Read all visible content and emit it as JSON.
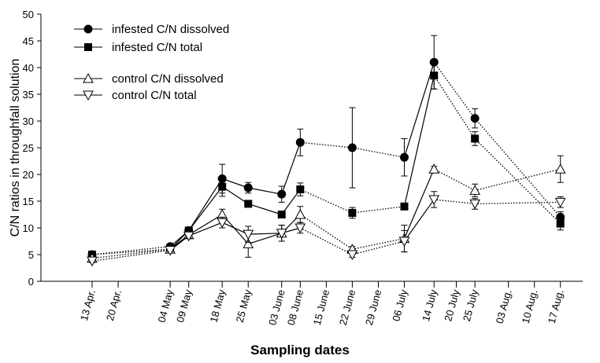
{
  "chart_data": {
    "type": "line",
    "x_label": "Sampling dates",
    "y_label": "C/N ratios in throughfall solution",
    "x": [
      "13 Apr.",
      "04 May",
      "09 May",
      "18 May",
      "25 May",
      "03 June",
      "08 June",
      "22 June",
      "06 July",
      "14 July",
      "25 July",
      "17 Aug."
    ],
    "xticks": [
      "13 Apr.",
      "20 Apr.",
      "04 May",
      "09 May",
      "18 May",
      "25 May",
      "03 June",
      "08 June",
      "15 June",
      "22 June",
      "29 June",
      "06 July",
      "14 July",
      "20 July",
      "25 July",
      "03 Aug.",
      "10 Aug.",
      "17 Aug."
    ],
    "ylim": [
      0,
      50
    ],
    "yticks": [
      0,
      5,
      10,
      15,
      20,
      25,
      30,
      35,
      40,
      45,
      50
    ],
    "segment_styles": [
      "dotted",
      "solid",
      "solid",
      "solid",
      "solid",
      "solid",
      "dotted",
      "dotted",
      "solid",
      "dotted",
      "dotted"
    ],
    "grid": false,
    "legend_position": "upper left",
    "series": [
      {
        "name": "infested C/N dissolved",
        "color": "#000000",
        "marker": "circle",
        "values": [
          5,
          6.5,
          9.5,
          19.2,
          17.5,
          16.3,
          26,
          25,
          23.2,
          41,
          30.5,
          12
        ],
        "errors": [
          0.3,
          0.3,
          0.4,
          2.7,
          1,
          1.5,
          2.5,
          7.5,
          3.5,
          5,
          1.8,
          1
        ]
      },
      {
        "name": "infested C/N total",
        "color": "#000000",
        "marker": "square",
        "values": [
          5,
          6,
          9.5,
          17.7,
          14.5,
          12.5,
          17.2,
          12.8,
          14,
          38.5,
          26.7,
          10.8
        ],
        "errors": [
          0.3,
          0.3,
          0.4,
          1.8,
          0.4,
          0.5,
          1.2,
          1,
          0.5,
          2.5,
          1.3,
          1.2
        ]
      },
      {
        "name": "control C/N dissolved",
        "color": "#000000",
        "marker": "triangle-up",
        "values": [
          4.3,
          6,
          8.7,
          12.5,
          7,
          9,
          12.5,
          6,
          8,
          21,
          17,
          21
        ],
        "errors": [
          0.3,
          0.3,
          0.4,
          1,
          2.5,
          1.5,
          1.5,
          0.5,
          2.5,
          0.5,
          1.2,
          2.5
        ]
      },
      {
        "name": "control C/N total",
        "color": "#000000",
        "marker": "triangle-down",
        "values": [
          3.8,
          5.8,
          8.5,
          11,
          8.8,
          9,
          10,
          5,
          7.5,
          15.3,
          14.5,
          14.8
        ],
        "errors": [
          0.3,
          0.3,
          0.4,
          1,
          1.5,
          1.5,
          1,
          0.5,
          2,
          1.5,
          1,
          1
        ]
      }
    ]
  }
}
